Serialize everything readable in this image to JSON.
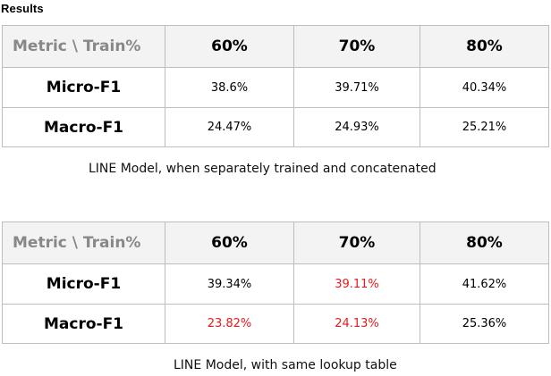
{
  "heading": "Results",
  "tables": [
    {
      "header": [
        "Metric \\ Train%",
        "60%",
        "70%",
        "80%"
      ],
      "rows": [
        {
          "metric": "Micro-F1",
          "values": [
            "38.6%",
            "39.71%",
            "40.34%"
          ]
        },
        {
          "metric": "Macro-F1",
          "values": [
            "24.47%",
            "24.93%",
            "25.21%"
          ]
        }
      ],
      "caption": "LINE Model, when separately trained and concatenated"
    },
    {
      "header": [
        "Metric \\ Train%",
        "60%",
        "70%",
        "80%"
      ],
      "rows": [
        {
          "metric": "Micro-F1",
          "values": [
            "39.34%",
            "39.11%",
            "41.62%"
          ]
        },
        {
          "metric": "Macro-F1",
          "values": [
            "23.82%",
            "24.13%",
            "25.36%"
          ]
        }
      ],
      "caption": "LINE Model, with same lookup table"
    }
  ],
  "colors": {
    "highlight": "#e8191c",
    "header_bg": "#f3f3f3",
    "header_corner_text": "#888888",
    "border": "#bdbdbd"
  }
}
